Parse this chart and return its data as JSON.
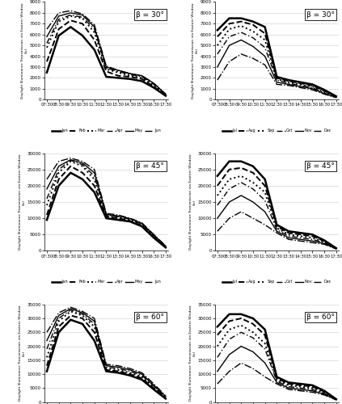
{
  "time_labels": [
    "07:30",
    "08:30",
    "09:30",
    "10:30",
    "11:30",
    "12:30",
    "13:30",
    "14:30",
    "15:30",
    "16:30",
    "17:30"
  ],
  "time_values": [
    0,
    1,
    2,
    3,
    4,
    5,
    6,
    7,
    8,
    9,
    10
  ],
  "left_legend": [
    "Jan",
    "Feb",
    "Mar",
    "Apr",
    "May",
    "Jun"
  ],
  "right_legend": [
    "Jul",
    "Aug",
    "Sep",
    "Oct",
    "Nov",
    "Dec"
  ],
  "data_left": {
    "30": [
      [
        2500,
        5900,
        6700,
        5900,
        4600,
        2100,
        2000,
        1900,
        1700,
        1100,
        350
      ],
      [
        3500,
        6500,
        7300,
        7000,
        5500,
        2600,
        2200,
        2100,
        1900,
        1200,
        400
      ],
      [
        4800,
        7200,
        7700,
        7500,
        6200,
        2800,
        2500,
        2200,
        2000,
        1300,
        450
      ],
      [
        5200,
        7400,
        7800,
        7600,
        6500,
        2900,
        2600,
        2300,
        2100,
        1400,
        480
      ],
      [
        5800,
        7700,
        8000,
        7800,
        6700,
        3000,
        2700,
        2400,
        2200,
        1500,
        500
      ],
      [
        6500,
        8000,
        8200,
        7900,
        6900,
        3100,
        2700,
        2400,
        2200,
        1500,
        510
      ]
    ],
    "45": [
      [
        9500,
        20000,
        24000,
        22000,
        18000,
        10000,
        9500,
        9000,
        7500,
        4000,
        1000
      ],
      [
        11000,
        22000,
        26000,
        24000,
        20000,
        10500,
        10000,
        9200,
        7700,
        4200,
        1100
      ],
      [
        14000,
        24000,
        27500,
        26000,
        22000,
        10800,
        10200,
        9500,
        8000,
        4500,
        1200
      ],
      [
        16000,
        25000,
        27800,
        26500,
        23000,
        11000,
        10500,
        9700,
        8200,
        4700,
        1300
      ],
      [
        19000,
        26000,
        28000,
        27000,
        24000,
        11200,
        10700,
        9900,
        8400,
        4900,
        1400
      ],
      [
        22000,
        27500,
        28500,
        27500,
        25000,
        11500,
        11000,
        10000,
        8600,
        5000,
        1500
      ]
    ],
    "60": [
      [
        11000,
        25000,
        29500,
        28000,
        22000,
        11000,
        10500,
        9500,
        8000,
        4500,
        1200
      ],
      [
        13000,
        27000,
        31000,
        30000,
        25000,
        11500,
        11000,
        10000,
        8500,
        5000,
        1400
      ],
      [
        16000,
        29000,
        32500,
        31000,
        27000,
        12000,
        11500,
        10500,
        9000,
        5500,
        1600
      ],
      [
        19000,
        30000,
        33000,
        31500,
        28000,
        12500,
        12000,
        11000,
        9500,
        5800,
        1800
      ],
      [
        22000,
        31000,
        33500,
        32000,
        29000,
        13000,
        12500,
        11500,
        10000,
        6000,
        2000
      ],
      [
        25000,
        32000,
        34000,
        32500,
        30000,
        13500,
        13000,
        12000,
        10500,
        6500,
        2200
      ]
    ]
  },
  "data_right": {
    "30": [
      [
        6400,
        7500,
        7500,
        7200,
        6700,
        2100,
        1800,
        1600,
        1400,
        900,
        300
      ],
      [
        5800,
        7000,
        7200,
        6900,
        6100,
        2000,
        1700,
        1500,
        1300,
        800,
        280
      ],
      [
        5000,
        6500,
        6800,
        6300,
        5500,
        1900,
        1600,
        1400,
        1200,
        700,
        250
      ],
      [
        4200,
        5800,
        6200,
        5700,
        4800,
        1800,
        1500,
        1300,
        1100,
        600,
        220
      ],
      [
        3000,
        5000,
        5500,
        4900,
        4000,
        1600,
        1400,
        1200,
        1000,
        550,
        200
      ],
      [
        1800,
        3500,
        4200,
        3800,
        3200,
        1400,
        1300,
        1100,
        900,
        500,
        180
      ]
    ],
    "45": [
      [
        23000,
        27500,
        27500,
        26000,
        22000,
        8000,
        6000,
        5500,
        5000,
        3200,
        800
      ],
      [
        20000,
        25000,
        25500,
        24000,
        20000,
        7500,
        5500,
        5000,
        4500,
        3000,
        750
      ],
      [
        17000,
        22000,
        23000,
        21000,
        18000,
        7000,
        5000,
        4500,
        4000,
        2700,
        700
      ],
      [
        14000,
        19000,
        21000,
        19000,
        15500,
        6500,
        4500,
        4000,
        3500,
        2500,
        650
      ],
      [
        10000,
        15000,
        17000,
        15000,
        12000,
        6000,
        4000,
        3500,
        3000,
        2200,
        600
      ],
      [
        6000,
        10000,
        12000,
        10000,
        8000,
        5500,
        3500,
        3000,
        2500,
        2000,
        550
      ]
    ],
    "60": [
      [
        27000,
        31500,
        31500,
        30000,
        26000,
        9000,
        7000,
        6500,
        6000,
        4000,
        1000
      ],
      [
        24000,
        29000,
        30000,
        28000,
        24000,
        8500,
        6500,
        6000,
        5500,
        3700,
        950
      ],
      [
        20000,
        26000,
        27500,
        25000,
        21000,
        8000,
        6000,
        5500,
        5000,
        3400,
        900
      ],
      [
        16000,
        22500,
        25000,
        23000,
        19000,
        7500,
        5500,
        5000,
        4500,
        3100,
        850
      ],
      [
        11000,
        17000,
        20000,
        18000,
        14000,
        7000,
        5000,
        4500,
        4000,
        2800,
        800
      ],
      [
        6500,
        11000,
        14000,
        12000,
        9000,
        6500,
        4500,
        4000,
        3500,
        2500,
        750
      ]
    ]
  },
  "ylims": {
    "30": [
      0,
      9000
    ],
    "45": [
      0,
      30000
    ],
    "60": [
      0,
      35000
    ]
  },
  "yticks": {
    "30": [
      0,
      1000,
      2000,
      3000,
      4000,
      5000,
      6000,
      7000,
      8000,
      9000
    ],
    "45": [
      0,
      5000,
      10000,
      15000,
      20000,
      25000,
      30000
    ],
    "60": [
      0,
      5000,
      10000,
      15000,
      20000,
      25000,
      30000,
      35000
    ]
  }
}
